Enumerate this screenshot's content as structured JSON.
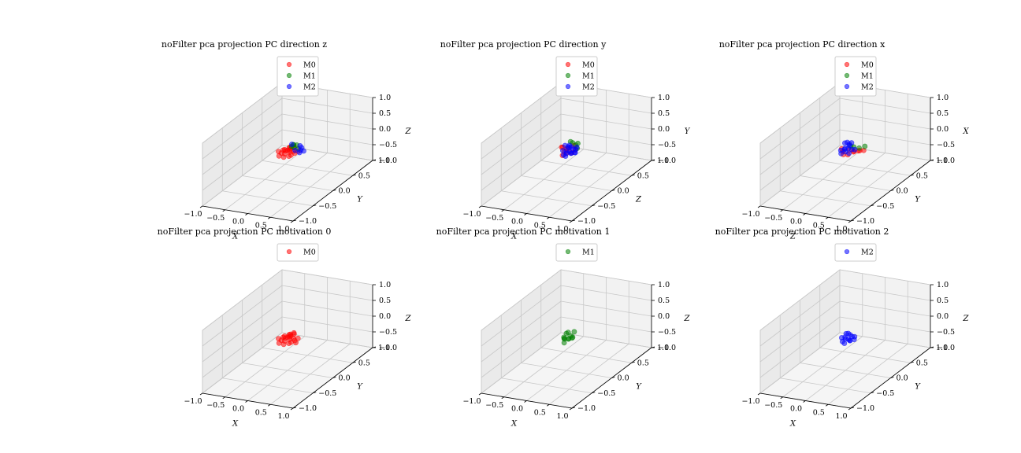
{
  "figure": {
    "colors": {
      "M0": "#ff0000",
      "M1": "#008000",
      "M2": "#0000ff"
    }
  },
  "chart_data": [
    {
      "type": "scatter",
      "title": "noFilter pca projection PC direction z",
      "axes": {
        "x_label": "X",
        "y_label": "Y",
        "z_label": "Z"
      },
      "xlim": [
        -1,
        1
      ],
      "ylim": [
        -1,
        1
      ],
      "zlim": [
        -1,
        1
      ],
      "tick_labels": {
        "x": [
          "−1.0",
          "−0.5",
          "0.0",
          "0.5",
          "1.0"
        ],
        "y": [
          "−1.0",
          "−0.5",
          "0.0",
          "0.5",
          "1.0"
        ],
        "z": [
          "−1.0",
          "−0.5",
          "0.0",
          "0.5",
          "1.0"
        ]
      },
      "grid": true,
      "legend": "top-right",
      "series": [
        {
          "name": "M0",
          "color": "#ff0000",
          "points": [
            [
              -0.02,
              -0.05,
              -0.02
            ],
            [
              0.05,
              0.0,
              0.0
            ],
            [
              -0.08,
              0.04,
              -0.03
            ],
            [
              0.1,
              -0.08,
              -0.04
            ],
            [
              0.0,
              0.08,
              0.02
            ],
            [
              -0.12,
              -0.02,
              -0.05
            ],
            [
              0.08,
              0.06,
              -0.02
            ],
            [
              0.02,
              -0.12,
              -0.05
            ],
            [
              -0.05,
              0.1,
              0.03
            ],
            [
              0.14,
              0.02,
              -0.03
            ],
            [
              -0.15,
              0.06,
              -0.04
            ],
            [
              0.04,
              0.12,
              0.05
            ],
            [
              -0.1,
              -0.1,
              -0.06
            ],
            [
              0.12,
              -0.05,
              -0.03
            ],
            [
              0.0,
              0.0,
              0.05
            ],
            [
              -0.2,
              0.0,
              -0.04
            ],
            [
              0.06,
              -0.02,
              0.08
            ],
            [
              -0.03,
              -0.04,
              0.1
            ],
            [
              0.16,
              0.08,
              -0.02
            ],
            [
              -0.06,
              0.14,
              0.0
            ]
          ]
        },
        {
          "name": "M1",
          "color": "#008000",
          "points": [
            [
              0.05,
              0.1,
              0.05
            ],
            [
              0.1,
              0.12,
              0.12
            ],
            [
              0.0,
              0.15,
              0.08
            ],
            [
              0.15,
              0.1,
              0.03
            ],
            [
              0.08,
              0.06,
              0.18
            ],
            [
              0.02,
              0.08,
              0.1
            ]
          ]
        },
        {
          "name": "M2",
          "color": "#0000ff",
          "points": [
            [
              0.2,
              0.1,
              0.0
            ],
            [
              0.22,
              0.05,
              -0.02
            ],
            [
              0.18,
              0.15,
              0.03
            ],
            [
              0.05,
              0.05,
              0.2
            ],
            [
              0.15,
              0.02,
              0.06
            ],
            [
              0.25,
              0.12,
              -0.03
            ],
            [
              0.1,
              0.2,
              0.02
            ]
          ]
        }
      ]
    },
    {
      "type": "scatter",
      "title": "noFilter pca projection PC direction y",
      "axes": {
        "x_label": "X",
        "y_label": "Z",
        "z_label": "Y"
      },
      "xlim": [
        -1,
        1
      ],
      "ylim": [
        -1,
        1
      ],
      "zlim": [
        -1,
        1
      ],
      "tick_labels": {
        "x": [
          "−1.0",
          "−0.5",
          "0.0",
          "0.5",
          "1.0"
        ],
        "y": [
          "−1.0",
          "−0.5",
          "0.0",
          "0.5",
          "1.0"
        ],
        "z": [
          "−1.0",
          "−0.5",
          "0.0",
          "0.5",
          "1.0"
        ]
      },
      "grid": true,
      "legend": "top-right",
      "series": [
        {
          "name": "M0",
          "color": "#ff0000",
          "points": [
            [
              -0.05,
              0.0,
              0.0
            ],
            [
              0.0,
              0.05,
              0.05
            ],
            [
              -0.1,
              0.02,
              0.1
            ],
            [
              0.05,
              -0.05,
              0.02
            ],
            [
              0.12,
              0.0,
              0.0
            ],
            [
              -0.08,
              0.1,
              -0.02
            ],
            [
              0.15,
              0.05,
              0.04
            ],
            [
              0.0,
              -0.1,
              -0.02
            ],
            [
              -0.15,
              0.05,
              0.06
            ],
            [
              0.08,
              0.1,
              0.12
            ]
          ]
        },
        {
          "name": "M1",
          "color": "#008000",
          "points": [
            [
              0.05,
              0.1,
              0.2
            ],
            [
              0.1,
              0.12,
              0.12
            ],
            [
              0.15,
              0.1,
              0.05
            ],
            [
              0.02,
              0.08,
              0.25
            ],
            [
              0.12,
              0.15,
              0.15
            ]
          ]
        },
        {
          "name": "M2",
          "color": "#0000ff",
          "points": [
            [
              0.0,
              0.0,
              -0.05
            ],
            [
              0.05,
              0.02,
              0.0
            ],
            [
              -0.05,
              0.05,
              -0.03
            ],
            [
              0.1,
              0.0,
              -0.02
            ],
            [
              0.08,
              0.08,
              0.03
            ],
            [
              -0.02,
              -0.05,
              -0.06
            ],
            [
              0.12,
              -0.02,
              0.0
            ],
            [
              0.02,
              0.1,
              0.06
            ],
            [
              -0.08,
              0.0,
              0.02
            ],
            [
              0.15,
              0.05,
              -0.04
            ],
            [
              0.05,
              -0.08,
              -0.05
            ],
            [
              -0.04,
              0.12,
              0.08
            ],
            [
              0.1,
              0.12,
              -0.02
            ],
            [
              0.18,
              0.0,
              0.02
            ],
            [
              0.0,
              0.04,
              0.12
            ],
            [
              0.06,
              0.0,
              0.15
            ],
            [
              -0.1,
              0.08,
              0.1
            ],
            [
              0.14,
              0.1,
              0.08
            ]
          ]
        }
      ]
    },
    {
      "type": "scatter",
      "title": "noFilter pca projection PC direction x",
      "axes": {
        "x_label": "Z",
        "y_label": "Y",
        "z_label": "X"
      },
      "xlim": [
        -1,
        1
      ],
      "ylim": [
        -1,
        1
      ],
      "zlim": [
        -1,
        1
      ],
      "tick_labels": {
        "x": [
          "−1.0",
          "−0.5",
          "0.0",
          "0.5",
          "1.0"
        ],
        "y": [
          "−1.0",
          "−0.5",
          "0.0",
          "0.5",
          "1.0"
        ],
        "z": [
          "−1.0",
          "−0.5",
          "0.0",
          "0.5",
          "1.0"
        ]
      },
      "grid": true,
      "legend": "top-right",
      "series": [
        {
          "name": "M0",
          "color": "#ff0000",
          "points": [
            [
              -0.05,
              0.0,
              0.0
            ],
            [
              0.05,
              0.05,
              0.02
            ],
            [
              0.15,
              0.05,
              0.0
            ],
            [
              0.2,
              0.1,
              -0.02
            ],
            [
              0.25,
              0.08,
              0.02
            ],
            [
              -0.1,
              0.02,
              0.05
            ],
            [
              0.1,
              -0.05,
              -0.02
            ],
            [
              0.3,
              0.12,
              0.0
            ],
            [
              0.0,
              -0.05,
              -0.04
            ],
            [
              0.18,
              0.0,
              0.04
            ]
          ]
        },
        {
          "name": "M1",
          "color": "#008000",
          "points": [
            [
              0.1,
              0.1,
              0.08
            ],
            [
              0.2,
              0.12,
              0.05
            ],
            [
              0.3,
              0.15,
              0.1
            ],
            [
              0.05,
              0.08,
              0.12
            ]
          ]
        },
        {
          "name": "M2",
          "color": "#0000ff",
          "points": [
            [
              0.0,
              0.0,
              0.0
            ],
            [
              -0.05,
              0.05,
              0.05
            ],
            [
              0.05,
              0.02,
              0.1
            ],
            [
              0.0,
              0.1,
              0.15
            ],
            [
              -0.1,
              0.0,
              0.02
            ],
            [
              0.1,
              0.05,
              0.05
            ],
            [
              0.05,
              0.1,
              0.2
            ],
            [
              -0.05,
              -0.05,
              -0.02
            ],
            [
              0.0,
              0.05,
              0.25
            ],
            [
              0.08,
              0.0,
              -0.03
            ],
            [
              -0.02,
              0.12,
              0.08
            ],
            [
              0.12,
              0.1,
              0.0
            ],
            [
              0.02,
              -0.04,
              0.12
            ],
            [
              -0.08,
              0.08,
              0.18
            ]
          ]
        }
      ]
    },
    {
      "type": "scatter",
      "title": "noFilter pca projection PC motivation 0",
      "axes": {
        "x_label": "X",
        "y_label": "Y",
        "z_label": "Z"
      },
      "xlim": [
        -1,
        1
      ],
      "ylim": [
        -1,
        1
      ],
      "zlim": [
        -1,
        1
      ],
      "tick_labels": {
        "x": [
          "−1.0",
          "−0.5",
          "0.0",
          "0.5",
          "1.0"
        ],
        "y": [
          "−1.0",
          "−0.5",
          "0.0",
          "0.5",
          "1.0"
        ],
        "z": [
          "−1.0",
          "−0.5",
          "0.0",
          "0.5",
          "1.0"
        ]
      },
      "grid": true,
      "legend": "top-right",
      "series": [
        {
          "name": "M0",
          "color": "#ff0000",
          "points": [
            [
              -0.02,
              -0.05,
              -0.02
            ],
            [
              0.05,
              0.0,
              0.0
            ],
            [
              -0.08,
              0.04,
              -0.03
            ],
            [
              0.1,
              -0.08,
              -0.04
            ],
            [
              0.0,
              0.08,
              0.02
            ],
            [
              -0.12,
              -0.02,
              -0.05
            ],
            [
              0.08,
              0.06,
              -0.02
            ],
            [
              0.02,
              -0.12,
              -0.05
            ],
            [
              -0.05,
              0.1,
              0.03
            ],
            [
              0.14,
              0.02,
              -0.03
            ],
            [
              -0.15,
              0.06,
              -0.04
            ],
            [
              0.04,
              0.12,
              0.05
            ],
            [
              -0.1,
              -0.1,
              -0.06
            ],
            [
              0.12,
              -0.05,
              -0.03
            ],
            [
              0.0,
              0.0,
              0.06
            ],
            [
              -0.2,
              0.0,
              -0.04
            ],
            [
              0.06,
              -0.02,
              0.1
            ],
            [
              -0.03,
              -0.04,
              0.12
            ],
            [
              0.16,
              0.08,
              -0.02
            ],
            [
              -0.06,
              0.14,
              0.0
            ],
            [
              0.2,
              -0.02,
              -0.05
            ],
            [
              0.0,
              0.16,
              0.04
            ]
          ]
        }
      ]
    },
    {
      "type": "scatter",
      "title": "noFilter pca projection PC motivation 1",
      "axes": {
        "x_label": "X",
        "y_label": "Y",
        "z_label": "Z"
      },
      "xlim": [
        -1,
        1
      ],
      "ylim": [
        -1,
        1
      ],
      "zlim": [
        -1,
        1
      ],
      "tick_labels": {
        "x": [
          "−1.0",
          "−0.5",
          "0.0",
          "0.5",
          "1.0"
        ],
        "y": [
          "−1.0",
          "−0.5",
          "0.0",
          "0.5",
          "1.0"
        ],
        "z": [
          "−1.0",
          "−0.5",
          "0.0",
          "0.5",
          "1.0"
        ]
      },
      "grid": true,
      "legend": "top-right",
      "series": [
        {
          "name": "M1",
          "color": "#008000",
          "points": [
            [
              -0.05,
              0.0,
              0.0
            ],
            [
              0.0,
              0.05,
              -0.05
            ],
            [
              0.05,
              0.0,
              0.02
            ],
            [
              -0.1,
              0.05,
              -0.02
            ],
            [
              0.0,
              -0.05,
              0.05
            ],
            [
              0.08,
              0.05,
              0.0
            ],
            [
              -0.05,
              0.1,
              0.1
            ],
            [
              0.1,
              0.0,
              0.12
            ],
            [
              0.05,
              0.1,
              -0.03
            ],
            [
              -0.02,
              0.02,
              0.15
            ],
            [
              0.12,
              0.06,
              0.2
            ],
            [
              0.02,
              -0.08,
              -0.04
            ]
          ]
        }
      ]
    },
    {
      "type": "scatter",
      "title": "noFilter pca projection PC motivation 2",
      "axes": {
        "x_label": "X",
        "y_label": "Y",
        "z_label": "Z"
      },
      "xlim": [
        -1,
        1
      ],
      "ylim": [
        -1,
        1
      ],
      "zlim": [
        -1,
        1
      ],
      "tick_labels": {
        "x": [
          "−1.0",
          "−0.5",
          "0.0",
          "0.5",
          "1.0"
        ],
        "y": [
          "−1.0",
          "−0.5",
          "0.0",
          "0.5",
          "1.0"
        ],
        "z": [
          "−1.0",
          "−0.5",
          "0.0",
          "0.5",
          "1.0"
        ]
      },
      "grid": true,
      "legend": "top-right",
      "series": [
        {
          "name": "M2",
          "color": "#0000ff",
          "points": [
            [
              0.0,
              0.0,
              0.0
            ],
            [
              0.05,
              0.02,
              -0.02
            ],
            [
              -0.05,
              0.05,
              0.0
            ],
            [
              0.1,
              0.0,
              -0.03
            ],
            [
              0.08,
              0.08,
              0.02
            ],
            [
              -0.02,
              -0.05,
              -0.04
            ],
            [
              0.12,
              -0.02,
              0.0
            ],
            [
              0.02,
              0.1,
              0.04
            ],
            [
              -0.08,
              0.0,
              0.02
            ],
            [
              0.15,
              0.05,
              -0.03
            ],
            [
              0.05,
              -0.08,
              -0.05
            ],
            [
              -0.04,
              0.12,
              0.05
            ],
            [
              0.0,
              0.02,
              0.15
            ],
            [
              0.1,
              0.12,
              -0.02
            ]
          ]
        }
      ]
    }
  ]
}
